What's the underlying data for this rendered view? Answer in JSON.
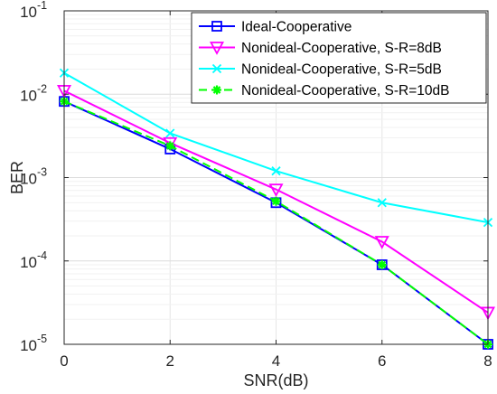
{
  "chart_data": {
    "type": "line",
    "title": "",
    "xlabel": "SNR(dB)",
    "ylabel": "BER",
    "xlim": [
      0,
      8
    ],
    "ylim": [
      1e-05,
      0.1
    ],
    "yscale": "log",
    "grid": true,
    "legend_position": "top-right",
    "x": [
      0,
      2,
      4,
      6,
      8
    ],
    "x_ticks": [
      0,
      2,
      4,
      6,
      8
    ],
    "x_tick_labels": [
      "0",
      "2",
      "4",
      "6",
      "8"
    ],
    "y_ticks": [
      1e-05,
      0.0001,
      0.001,
      0.01,
      0.1
    ],
    "y_tick_mantissa": "10",
    "y_tick_exponents": [
      "-5",
      "-4",
      "-3",
      "-2",
      "-1"
    ],
    "series": [
      {
        "name": "Ideal-Cooperative",
        "color": "#0000ff",
        "marker": "square",
        "dash": "solid",
        "values": [
          0.0082,
          0.0022,
          0.0005,
          9e-05,
          1e-05
        ]
      },
      {
        "name": "Nonideal-Cooperative, S-R=8dB",
        "color": "#ff00ff",
        "marker": "triangle-down",
        "dash": "solid",
        "values": [
          0.011,
          0.0026,
          0.00072,
          0.00017,
          2.4e-05
        ]
      },
      {
        "name": "Nonideal-Cooperative, S-R=5dB",
        "color": "#00ffff",
        "marker": "x",
        "dash": "solid",
        "values": [
          0.018,
          0.0034,
          0.0012,
          0.0005,
          0.00029
        ]
      },
      {
        "name": "Nonideal-Cooperative, S-R=10dB",
        "color": "#00ff00",
        "marker": "star",
        "dash": "dashed",
        "values": [
          0.0082,
          0.0024,
          0.00052,
          9e-05,
          1e-05
        ]
      }
    ]
  }
}
